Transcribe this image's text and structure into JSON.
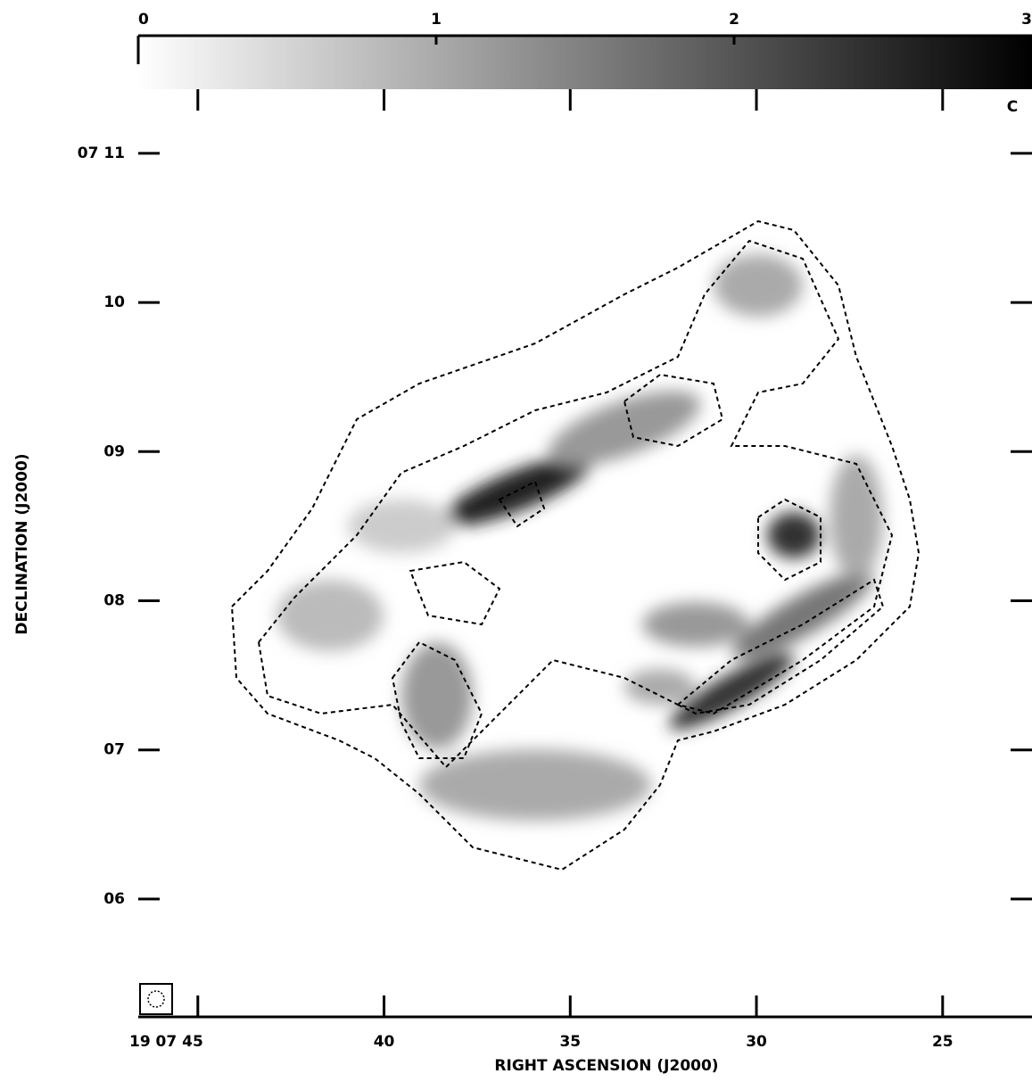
{
  "chart_data": {
    "type": "image",
    "colorbar": {
      "lim": [
        0,
        3
      ],
      "ticks": [
        0,
        1,
        2,
        3
      ],
      "colormap": [
        "#ffffff",
        "#000000"
      ]
    },
    "corner_label": "C",
    "xlabel": "RIGHT ASCENSION (J2000)",
    "ylabel": "DECLINATION (J2000)",
    "xlim": [
      46.6,
      22.6
    ],
    "xticks": [
      {
        "value": 45,
        "label": "19 07 45"
      },
      40,
      35,
      30,
      25
    ],
    "ylim": [
      5.21,
      11.43
    ],
    "yticks": [
      {
        "value": 11,
        "label": "07 11"
      },
      10,
      {
        "value": 9,
        "label": "09"
      },
      {
        "value": 8,
        "label": "08"
      },
      {
        "value": 7,
        "label": "07"
      },
      {
        "value": 6,
        "label": "06"
      }
    ],
    "contour_color": "#000000"
  }
}
